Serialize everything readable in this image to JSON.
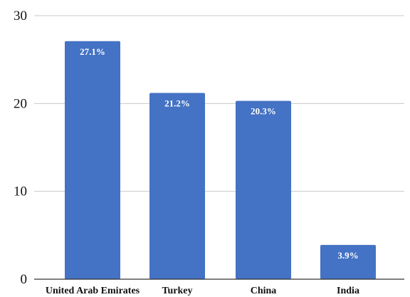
{
  "chart_data": {
    "type": "bar",
    "title": "",
    "xlabel": "",
    "ylabel": "",
    "categories": [
      "United Arab Emirates",
      "Turkey",
      "China",
      "India"
    ],
    "values": [
      27.1,
      21.2,
      20.3,
      3.9
    ],
    "data_labels": [
      "27.1%",
      "21.2%",
      "20.3%",
      "3.9%"
    ],
    "ylim": [
      0,
      30
    ],
    "yticks": [
      0,
      10,
      20,
      30
    ],
    "ytick_labels": [
      "0",
      "10",
      "20",
      "30"
    ],
    "grid": true,
    "legend": "none",
    "bar_color": "#4472c4"
  }
}
